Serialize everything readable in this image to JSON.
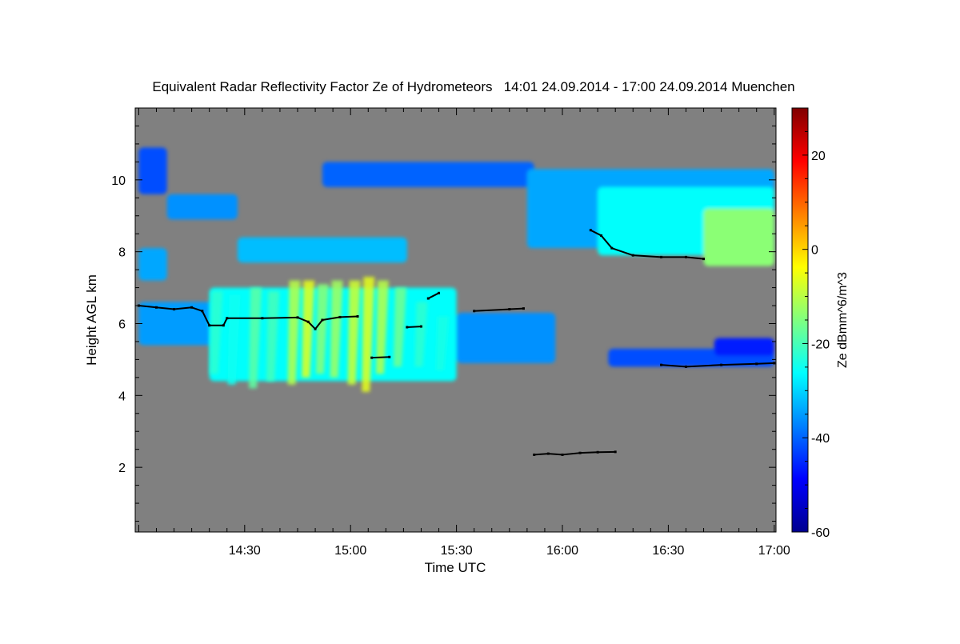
{
  "chart_data": {
    "type": "heatmap",
    "title": "Equivalent Radar Reflectivity Factor Ze of Hydrometeors   14:01 24.09.2014 - 17:00 24.09.2014 Muenchen",
    "xlabel": "Time UTC",
    "ylabel": "Height AGL km",
    "colorbar_label": "Ze dBmm^6/m^3",
    "x_unit": "minutes after 14:00 UTC",
    "xlim": [
      -1,
      180.5
    ],
    "ylim": [
      0.2,
      12
    ],
    "x_ticks": [
      {
        "v": 30,
        "label": "14:30"
      },
      {
        "v": 60,
        "label": "15:00"
      },
      {
        "v": 90,
        "label": "15:30"
      },
      {
        "v": 120,
        "label": "16:00"
      },
      {
        "v": 150,
        "label": "16:30"
      },
      {
        "v": 180,
        "label": "17:00"
      }
    ],
    "y_ticks": [
      {
        "v": 2,
        "label": "2"
      },
      {
        "v": 4,
        "label": "4"
      },
      {
        "v": 6,
        "label": "6"
      },
      {
        "v": 8,
        "label": "8"
      },
      {
        "v": 10,
        "label": "10"
      }
    ],
    "colorbar_range": [
      -60,
      30
    ],
    "colorbar_ticks": [
      {
        "v": 20,
        "label": "20"
      },
      {
        "v": 0,
        "label": "0"
      },
      {
        "v": -20,
        "label": "-20"
      },
      {
        "v": -40,
        "label": "-40"
      },
      {
        "v": -60,
        "label": "-60"
      }
    ],
    "background_color": "#808080",
    "echo_regions": [
      {
        "t": [
          0,
          8
        ],
        "base": 9.6,
        "top": 10.9,
        "ze": -42
      },
      {
        "t": [
          8,
          28
        ],
        "base": 8.9,
        "top": 9.6,
        "ze": -36
      },
      {
        "t": [
          28,
          76
        ],
        "base": 7.7,
        "top": 8.4,
        "ze": -32
      },
      {
        "t": [
          0,
          8
        ],
        "base": 7.2,
        "top": 8.1,
        "ze": -34
      },
      {
        "t": [
          0,
          22
        ],
        "base": 5.4,
        "top": 6.6,
        "ze": -35
      },
      {
        "t": [
          20,
          90
        ],
        "base": 4.4,
        "top": 7.0,
        "ze": -26
      },
      {
        "t": [
          90,
          118
        ],
        "base": 4.9,
        "top": 6.3,
        "ze": -36
      },
      {
        "t": [
          52,
          112
        ],
        "base": 9.8,
        "top": 10.5,
        "ze": -40
      },
      {
        "t": [
          110,
          180
        ],
        "base": 8.1,
        "top": 10.3,
        "ze": -34
      },
      {
        "t": [
          130,
          180
        ],
        "base": 7.9,
        "top": 9.8,
        "ze": -26
      },
      {
        "t": [
          160,
          180
        ],
        "base": 7.6,
        "top": 9.2,
        "ze": -14
      },
      {
        "t": [
          133,
          180
        ],
        "base": 4.8,
        "top": 5.3,
        "ze": -42
      },
      {
        "t": [
          163,
          180
        ],
        "base": 5.1,
        "top": 5.6,
        "ze": -46
      }
    ],
    "fall_streaks": [
      {
        "t": 22,
        "base": 4.6,
        "top": 6.9,
        "ze": -22
      },
      {
        "t": 27,
        "base": 4.3,
        "top": 6.8,
        "ze": -25
      },
      {
        "t": 33,
        "base": 4.2,
        "top": 7.0,
        "ze": -18
      },
      {
        "t": 38,
        "base": 4.4,
        "top": 6.9,
        "ze": -20
      },
      {
        "t": 44,
        "base": 4.3,
        "top": 7.2,
        "ze": -10
      },
      {
        "t": 48,
        "base": 4.5,
        "top": 7.2,
        "ze": -6
      },
      {
        "t": 52,
        "base": 4.6,
        "top": 7.1,
        "ze": -14
      },
      {
        "t": 56,
        "base": 4.5,
        "top": 7.2,
        "ze": -12
      },
      {
        "t": 61,
        "base": 4.3,
        "top": 7.2,
        "ze": -8
      },
      {
        "t": 65,
        "base": 4.1,
        "top": 7.3,
        "ze": -6
      },
      {
        "t": 69,
        "base": 4.6,
        "top": 7.2,
        "ze": -10
      },
      {
        "t": 74,
        "base": 4.8,
        "top": 7.0,
        "ze": -16
      },
      {
        "t": 80,
        "base": 4.8,
        "top": 6.6,
        "ze": -22
      },
      {
        "t": 86,
        "base": 4.7,
        "top": 6.2,
        "ze": -24
      }
    ],
    "cloud_base_points": [
      [
        0,
        6.5
      ],
      [
        5,
        6.45
      ],
      [
        10,
        6.4
      ],
      [
        15,
        6.45
      ],
      [
        18,
        6.35
      ],
      [
        20,
        5.95
      ],
      [
        24,
        5.95
      ],
      [
        25,
        6.15
      ],
      [
        35,
        6.15
      ],
      [
        45,
        6.17
      ],
      [
        48,
        6.05
      ],
      [
        50,
        5.85
      ],
      [
        52,
        6.1
      ],
      [
        57,
        6.18
      ],
      [
        62,
        6.2
      ],
      [
        66,
        5.05
      ],
      [
        71,
        5.07
      ],
      [
        76,
        5.9
      ],
      [
        80,
        5.92
      ],
      [
        82,
        6.7
      ],
      [
        85,
        6.85
      ],
      [
        95,
        6.35
      ],
      [
        105,
        6.4
      ],
      [
        109,
        6.42
      ],
      [
        112,
        2.35
      ],
      [
        116,
        2.38
      ],
      [
        120,
        2.35
      ],
      [
        125,
        2.4
      ],
      [
        130,
        2.42
      ],
      [
        135,
        2.43
      ],
      [
        128,
        8.6
      ],
      [
        131,
        8.45
      ],
      [
        134,
        8.1
      ],
      [
        140,
        7.9
      ],
      [
        148,
        7.85
      ],
      [
        155,
        7.85
      ],
      [
        160,
        7.8
      ],
      [
        148,
        4.85
      ],
      [
        155,
        4.8
      ],
      [
        165,
        4.85
      ],
      [
        175,
        4.88
      ],
      [
        180,
        4.9
      ]
    ]
  }
}
